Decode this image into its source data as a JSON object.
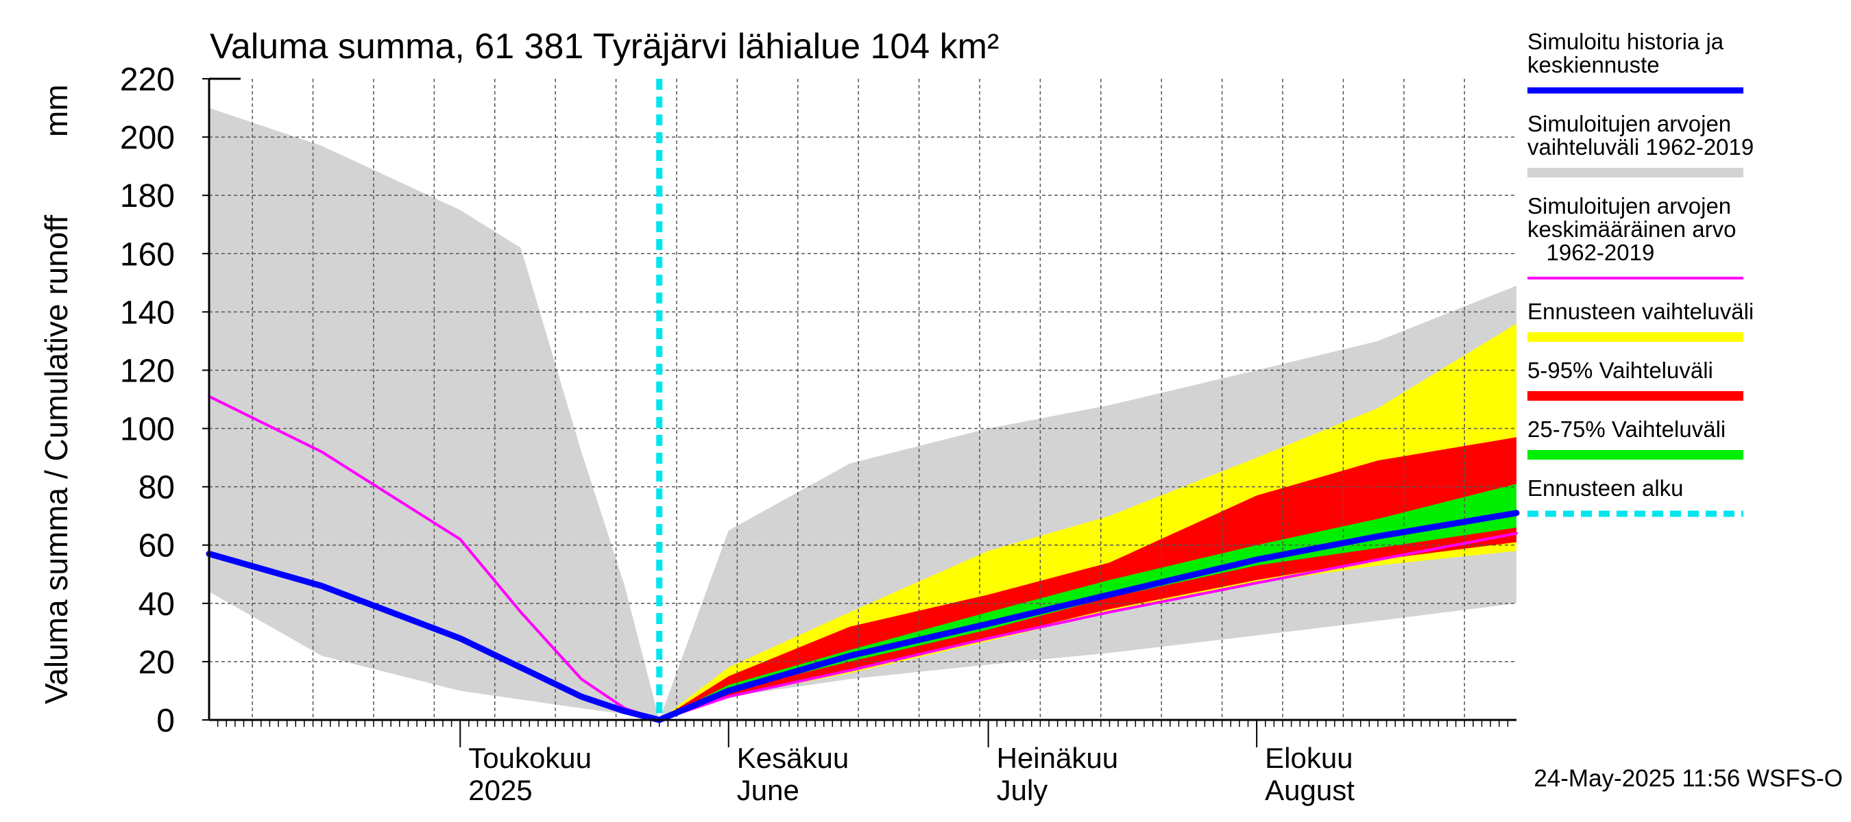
{
  "chart_data": {
    "type": "area",
    "title": "Valuma summa, 61 381 Tyräjärvi lähialue 104 km²",
    "ylabel": "Valuma summa / Cumulative runoff",
    "yunit": "mm",
    "ylim": [
      0,
      220
    ],
    "yticks": [
      0,
      20,
      40,
      60,
      80,
      100,
      120,
      140,
      160,
      180,
      200,
      220
    ],
    "xlim": [
      "2025-04-02",
      "2025-08-31"
    ],
    "grid": true,
    "legend_position": "right",
    "forecast_start": "2025-05-24",
    "month_labels": [
      {
        "date": "2025-05-01",
        "fi": "Toukokuu",
        "en": "2025"
      },
      {
        "date": "2025-06-01",
        "fi": "Kesäkuu",
        "en": "June"
      },
      {
        "date": "2025-07-01",
        "fi": "Heinäkuu",
        "en": "July"
      },
      {
        "date": "2025-08-01",
        "fi": "Elokuu",
        "en": "August"
      }
    ],
    "x": [
      "2025-04-02",
      "2025-04-15",
      "2025-05-01",
      "2025-05-08",
      "2025-05-15",
      "2025-05-20",
      "2025-05-24",
      "2025-06-01",
      "2025-06-15",
      "2025-07-01",
      "2025-07-15",
      "2025-08-01",
      "2025-08-15",
      "2025-08-31"
    ],
    "series": [
      {
        "name": "Simuloitujen arvojen vaihteluväli 1962-2019",
        "kind": "band",
        "low": [
          44,
          22,
          10,
          7,
          4,
          2,
          0,
          8,
          14,
          19,
          23,
          29,
          34,
          40
        ],
        "high": [
          210,
          197,
          175,
          162,
          92,
          46,
          0,
          65,
          88,
          100,
          108,
          120,
          130,
          149
        ]
      },
      {
        "name": "Ennusteen vaihteluväli",
        "kind": "band",
        "low": [
          null,
          null,
          null,
          null,
          null,
          null,
          0,
          8,
          16,
          27,
          37,
          47,
          53,
          58
        ],
        "high": [
          null,
          null,
          null,
          null,
          null,
          null,
          0,
          18,
          37,
          58,
          70,
          90,
          107,
          136
        ]
      },
      {
        "name": "5-95% Vaihteluväli",
        "kind": "band",
        "low": [
          null,
          null,
          null,
          null,
          null,
          null,
          0,
          8,
          17,
          28,
          38,
          48,
          55,
          61
        ],
        "high": [
          null,
          null,
          null,
          null,
          null,
          null,
          0,
          15,
          32,
          43,
          54,
          77,
          89,
          97
        ]
      },
      {
        "name": "25-75% Vaihteluväli",
        "kind": "band",
        "low": [
          null,
          null,
          null,
          null,
          null,
          null,
          0,
          10,
          20,
          31,
          42,
          53,
          59,
          66
        ],
        "high": [
          null,
          null,
          null,
          null,
          null,
          null,
          0,
          12,
          24,
          37,
          48,
          60,
          69,
          81
        ]
      },
      {
        "name": "Simuloitujen arvojen keskimääräinen arvo 1962-2019",
        "kind": "line",
        "values": [
          111,
          92,
          62,
          37,
          14,
          4,
          0,
          8,
          17,
          28,
          37,
          47,
          55,
          64
        ]
      },
      {
        "name": "Simuloitu historia ja keskiennuste",
        "kind": "line",
        "values": [
          57,
          46,
          28,
          18,
          8,
          3,
          0,
          10,
          22,
          33,
          43,
          55,
          63,
          71
        ]
      }
    ]
  },
  "legend": [
    {
      "label": "Simuloitu historia ja\nkeskiennuste",
      "color": "#0000ff",
      "style": "line"
    },
    {
      "label": "Simuloitujen arvojen\nvaihteluväli 1962-2019",
      "color": "#d3d3d3",
      "style": "bar"
    },
    {
      "label": "Simuloitujen arvojen\nkeskimääräinen arvo\n   1962-2019",
      "color": "#ff00ff",
      "style": "line"
    },
    {
      "label": "Ennusteen vaihteluväli",
      "color": "#ffff00",
      "style": "bar"
    },
    {
      "label": "5-95% Vaihteluväli",
      "color": "#ff0000",
      "style": "bar"
    },
    {
      "label": "25-75% Vaihteluväli",
      "color": "#00ee00",
      "style": "bar"
    },
    {
      "label": "Ennusteen alku",
      "color": "#00e5ee",
      "style": "dashed"
    }
  ],
  "timestamp": "24-May-2025 11:56 WSFS-O"
}
